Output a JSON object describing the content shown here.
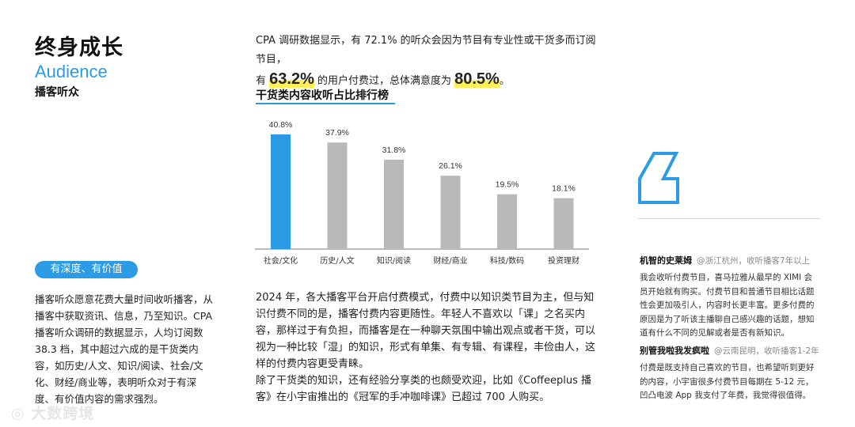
{
  "header": {
    "title": "终身成长",
    "subtitle_en": "Audience",
    "subtitle_cn": "播客听众"
  },
  "left": {
    "tag": "有深度、有价值",
    "text": "播客听众愿意花费大量时间收听播客，从播客中获取资讯、信息，乃至知识。CPA 播客听众调研的数据显示，人均订阅数 38.3 档，其中超过六成的是干货类内容，如历史/人文、知识/阅读、社会/文化、财经/商业等，表明听众对于有深度、有价值内容的需求强烈。"
  },
  "intro": {
    "line1": "CPA 调研数据显示，有 72.1% 的听众会因为节目有专业性或干货多而订阅节目，",
    "part1": "有 ",
    "hl1": "63.2%",
    "part2": " 的用户付费过，总体满意度为 ",
    "hl2": "80.5%",
    "part3": "。"
  },
  "chart_data": {
    "type": "bar",
    "title": "干货类内容收听占比排行榜",
    "categories": [
      "社会/文化",
      "历史/人文",
      "知识/阅读",
      "财经/商业",
      "科技/数码",
      "投资理财"
    ],
    "values": [
      40.8,
      37.9,
      31.8,
      26.1,
      19.5,
      18.1
    ],
    "value_labels": [
      "40.8%",
      "37.9%",
      "31.8%",
      "26.1%",
      "19.5%",
      "18.1%"
    ],
    "highlight_color": "#2b9be6",
    "bar_color": "#b9b9b9",
    "ylim": [
      0,
      45
    ]
  },
  "body": {
    "p1": "2024 年，各大播客平台开启付费模式，付费中以知识类节目为主，但与知识付费不同的是，播客付费内容更随性。年轻人不喜欢以「课」之名买内容，那样过于有负担，而播客是在一种聊天氛围中输出观点或者干货，可以视为一种比较「湿」的知识，形式有单集、有专辑、有课程，丰俭由人，这样的付费内容更受青睐。",
    "p2": "除了干货类的知识，还有经验分享类的也颇受欢迎，比如《Coffeeplus 播客》在小宇宙推出的《冠军的手冲咖啡课》已超过 700 人购买。"
  },
  "comments": [
    {
      "name": "机智的史莱姆",
      "meta": "@浙江杭州，收听播客7年以上",
      "text": "我会收听付费节目，喜马拉雅从最早的 XIMI 会员开始就有购买。付费节目和普通节目相比话题性会更加吸引人，内容时长更丰富。更多付费的原因是为了听该主播聊自己感兴趣的话题，想知道有什么不同的见解或者是否有新知识。"
    },
    {
      "name": "别管我啦我发疯啦",
      "meta": "@云南昆明，收听播客1-2年",
      "text": "付费是既支持自己喜欢的节目，也希望听到更好的内容，小宇宙很多付费节目每期在 5-12 元，凹凸电波 App 我支付了年费，我觉得很值得。"
    }
  ],
  "footer": {
    "logo": "大数跨境"
  },
  "icons": {
    "quote": "quote-icon",
    "logo": "logo-icon"
  }
}
